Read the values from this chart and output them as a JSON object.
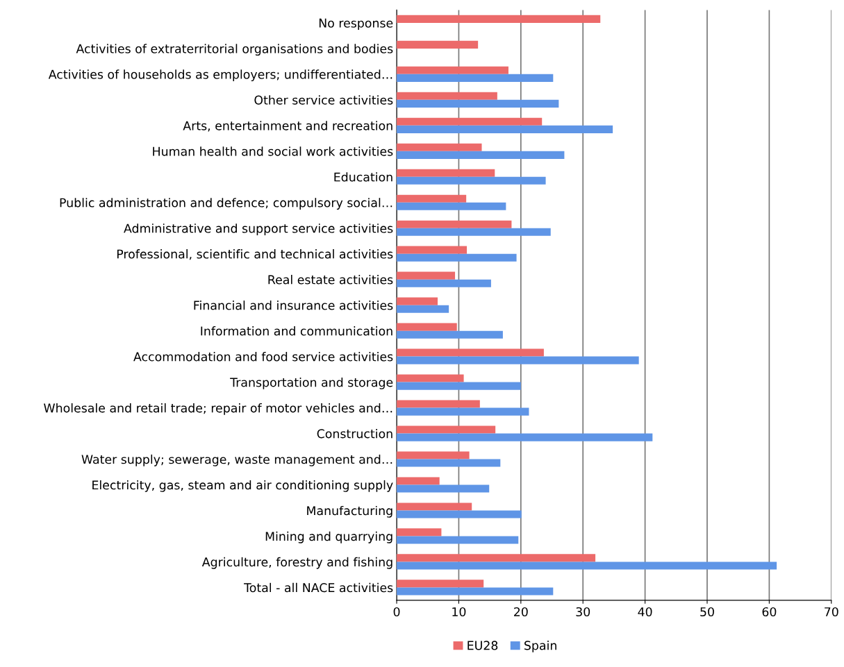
{
  "chart_data": {
    "type": "bar",
    "orientation": "horizontal",
    "categories": [
      "No response",
      "Activities of extraterritorial organisations and bodies",
      "Activities of households as employers; undifferentiated…",
      "Other service activities",
      "Arts, entertainment and recreation",
      "Human health and social work activities",
      "Education",
      "Public administration and defence; compulsory social…",
      "Administrative and support service activities",
      "Professional, scientific and technical activities",
      "Real estate activities",
      "Financial and insurance activities",
      "Information and communication",
      "Accommodation and food service activities",
      "Transportation and storage",
      "Wholesale and retail trade; repair of motor vehicles and…",
      "Construction",
      "Water supply; sewerage, waste management and…",
      "Electricity, gas, steam and air conditioning supply",
      "Manufacturing",
      "Mining and quarrying",
      "Agriculture, forestry and fishing",
      "Total - all NACE activities"
    ],
    "series": [
      {
        "name": "EU28",
        "color": "#ec6a6a",
        "values": [
          32.8,
          13.1,
          18.0,
          16.2,
          23.4,
          13.7,
          15.8,
          11.2,
          18.5,
          11.3,
          9.4,
          6.6,
          9.7,
          23.7,
          10.8,
          13.4,
          15.9,
          11.7,
          6.9,
          12.1,
          7.2,
          32.0,
          14.0
        ]
      },
      {
        "name": "Spain",
        "color": "#5f95e6",
        "values": [
          null,
          null,
          25.2,
          26.1,
          34.8,
          27.0,
          24.0,
          17.6,
          24.8,
          19.3,
          15.2,
          8.4,
          17.1,
          39.0,
          20.0,
          21.3,
          41.2,
          16.7,
          14.9,
          20.1,
          19.6,
          61.2,
          25.2
        ]
      }
    ],
    "xlim": [
      0,
      70
    ],
    "xticks": [
      0,
      10,
      20,
      30,
      40,
      50,
      60,
      70
    ],
    "grid": "x",
    "legend": "bottom"
  }
}
